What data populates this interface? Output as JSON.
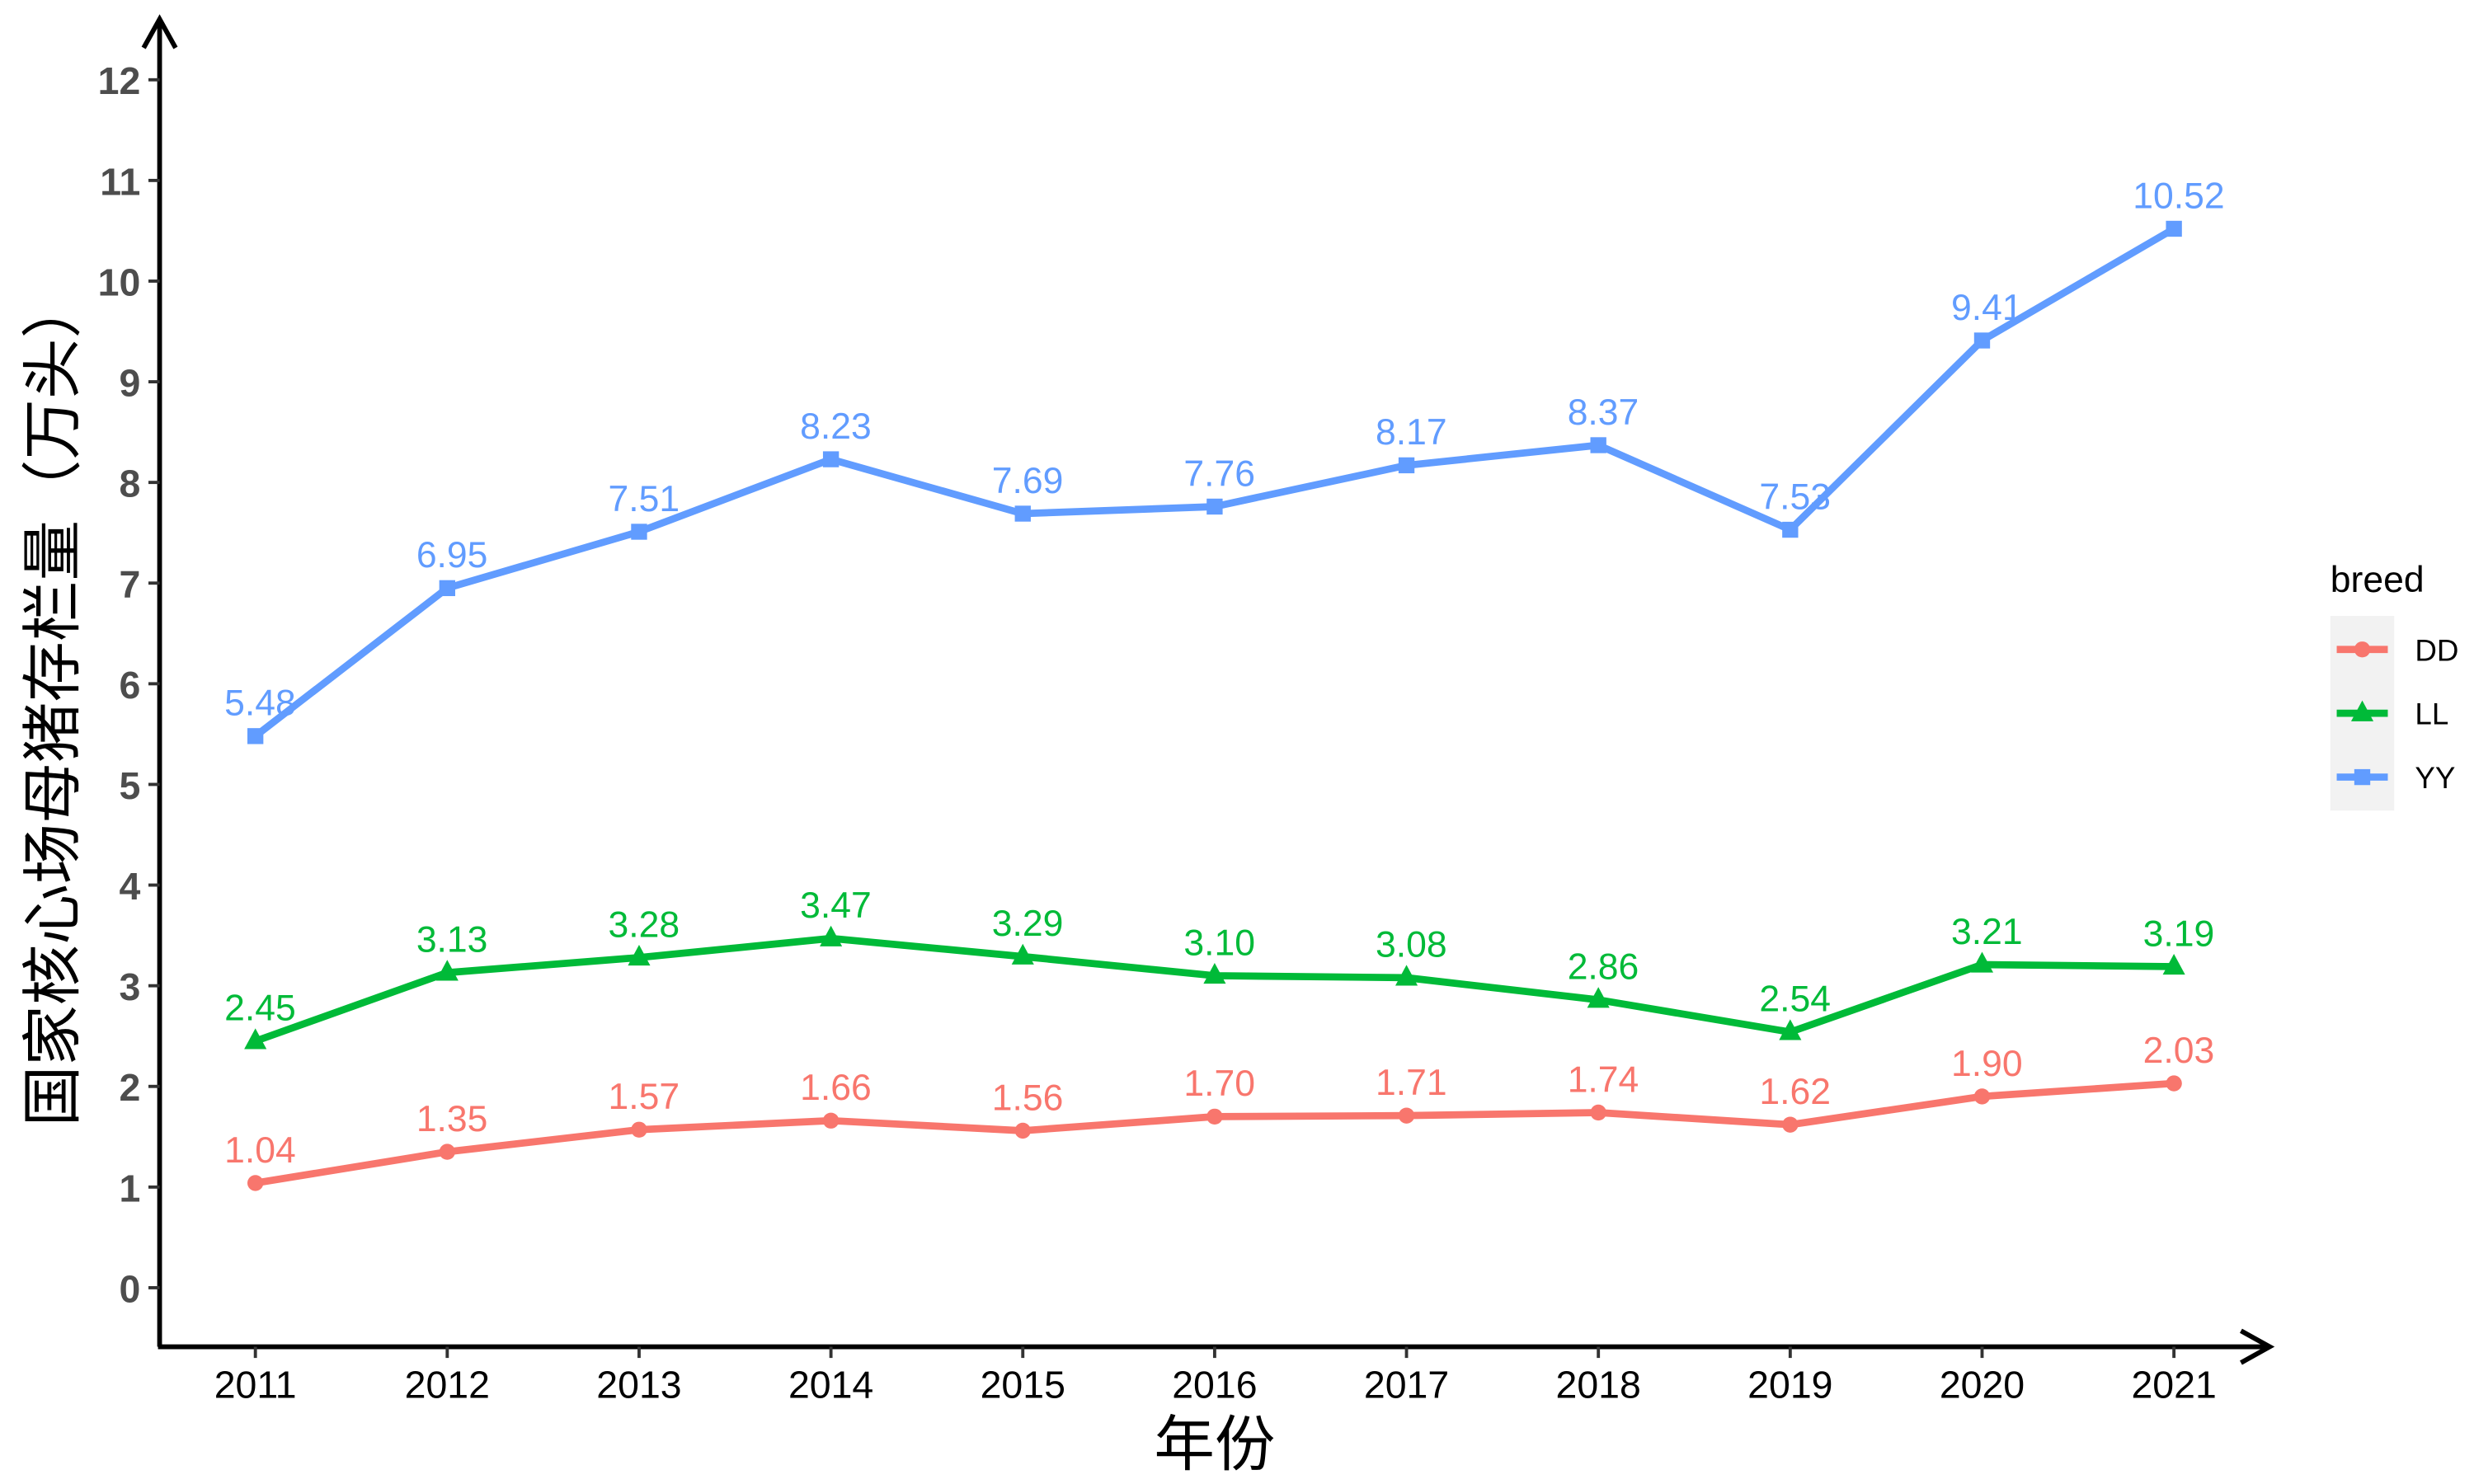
{
  "chart_data": {
    "type": "line",
    "title": "",
    "xlabel": "年份",
    "ylabel": "国家核心场母猪存栏量（万头）",
    "x": [
      2011,
      2012,
      2013,
      2014,
      2015,
      2016,
      2017,
      2018,
      2019,
      2020,
      2021
    ],
    "x_tick_labels": [
      "2011",
      "2012",
      "2013",
      "2014",
      "2015",
      "2016",
      "2017",
      "2018",
      "2019",
      "2020",
      "2021"
    ],
    "y_ticks": [
      0,
      1,
      2,
      3,
      4,
      5,
      6,
      7,
      8,
      9,
      10,
      11,
      12
    ],
    "y_tick_labels": [
      "0",
      "1",
      "2",
      "3",
      "4",
      "5",
      "6",
      "7",
      "8",
      "9",
      "10",
      "11",
      "12"
    ],
    "ylim": [
      0,
      12
    ],
    "grid": false,
    "legend": {
      "title": "breed",
      "placement": "right"
    },
    "series": [
      {
        "name": "DD",
        "color": "#F8766D",
        "marker": "circle",
        "values": [
          1.04,
          1.35,
          1.57,
          1.66,
          1.56,
          1.7,
          1.71,
          1.74,
          1.62,
          1.9,
          2.03
        ],
        "labels": [
          "1.04",
          "1.35",
          "1.57",
          "1.66",
          "1.56",
          "1.70",
          "1.71",
          "1.74",
          "1.62",
          "1.90",
          "2.03"
        ]
      },
      {
        "name": "LL",
        "color": "#00BA38",
        "marker": "triangle",
        "values": [
          2.45,
          3.13,
          3.28,
          3.47,
          3.29,
          3.1,
          3.08,
          2.86,
          2.54,
          3.21,
          3.19
        ],
        "labels": [
          "2.45",
          "3.13",
          "3.28",
          "3.47",
          "3.29",
          "3.10",
          "3.08",
          "2.86",
          "2.54",
          "3.21",
          "3.19"
        ]
      },
      {
        "name": "YY",
        "color": "#619CFF",
        "marker": "square",
        "values": [
          5.48,
          6.95,
          7.51,
          8.23,
          7.69,
          7.76,
          8.17,
          8.37,
          7.53,
          9.41,
          10.52
        ],
        "labels": [
          "5.48",
          "6.95",
          "7.51",
          "8.23",
          "7.69",
          "7.76",
          "8.17",
          "8.37",
          "7.53",
          "9.41",
          "10.52"
        ]
      }
    ]
  }
}
